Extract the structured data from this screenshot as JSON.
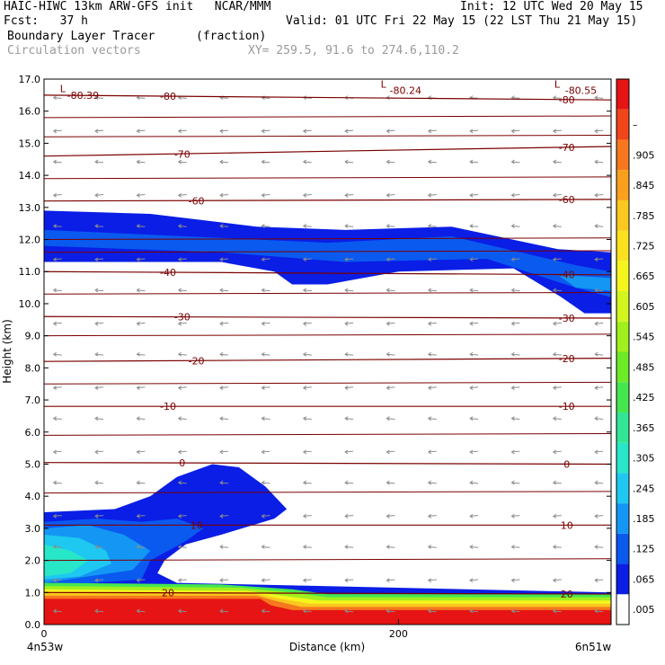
{
  "header": {
    "title": "HAIC-HIWC 13km ARW-GFS init   NCAR/MMM",
    "init": "Init: 12 UTC Wed 20 May 15",
    "fcst": "Fcst:   37 h",
    "valid": "Valid: 01 UTC Fri 22 May 15 (22 LST Thu 21 May 15)",
    "field": "Boundary Layer Tracer",
    "units": "(fraction)",
    "vectors": "Circulation vectors",
    "xy": "XY= 259.5, 91.6 to 274.6,110.2"
  },
  "chart_data": {
    "type": "heatmap",
    "title": "Boundary Layer Tracer",
    "xlabel": "Distance (km)",
    "ylabel": "Height (km)",
    "xlim": [
      0,
      320
    ],
    "ylim": [
      0,
      17
    ],
    "x_ticks": [
      "0",
      "200"
    ],
    "y_ticks": [
      "0.0",
      "1.0",
      "2.0",
      "3.0",
      "4.0",
      "5.0",
      "6.0",
      "7.0",
      "8.0",
      "9.0",
      "10.0",
      "11.0",
      "12.0",
      "13.0",
      "14.0",
      "15.0",
      "16.0",
      "17.0"
    ],
    "x_endpoint_labels": [
      "4n53w",
      "6n51w"
    ],
    "colorbar": {
      "labels": [
        ".005",
        ".065",
        ".125",
        ".185",
        ".245",
        ".305",
        ".365",
        ".425",
        ".485",
        ".545",
        ".605",
        ".665",
        ".725",
        ".785",
        ".845",
        ".905",
        "–"
      ],
      "colors": [
        "#ffffff",
        "#0a1ee6",
        "#0a5af0",
        "#1496f5",
        "#1ec8f0",
        "#28e6c8",
        "#32e696",
        "#46e650",
        "#6eeb28",
        "#a0f01e",
        "#d2f51e",
        "#f5f51e",
        "#fae11e",
        "#fac81e",
        "#faa01e",
        "#f5781e",
        "#f04619",
        "#e61414"
      ]
    },
    "temperature_contours": {
      "label_unit": "deg C",
      "lines": [
        {
          "label": "-80",
          "heights": [
            16.5,
            16.35
          ]
        },
        {
          "label": "-70",
          "heights": [
            14.6,
            14.9
          ]
        },
        {
          "label": "-60",
          "heights": [
            13.2,
            13.25
          ]
        },
        {
          "label": "-40",
          "heights": [
            11.0,
            10.9
          ]
        },
        {
          "label": "-30",
          "heights": [
            9.6,
            9.55
          ]
        },
        {
          "label": "-20",
          "heights": [
            8.2,
            8.3
          ]
        },
        {
          "label": "-10",
          "heights": [
            6.8,
            6.8
          ]
        },
        {
          "label": "0",
          "heights": [
            5.05,
            5.0
          ]
        },
        {
          "label": "10",
          "heights": [
            3.1,
            3.1
          ]
        },
        {
          "label": "20",
          "heights": [
            1.0,
            0.95
          ]
        }
      ],
      "extra_labels": [
        "L",
        "-80.39",
        "L",
        "-80.24",
        "L",
        "-80.55"
      ]
    },
    "tracer_regions": [
      {
        "name": "upper-layer",
        "x_range": [
          0,
          320
        ],
        "height_range": [
          9.7,
          12.9
        ],
        "max_fraction": 0.065
      },
      {
        "name": "boundary-layer-plume",
        "x_range": [
          0,
          135
        ],
        "height_range": [
          0.0,
          5.0
        ],
        "max_fraction": 0.305
      },
      {
        "name": "surface-layer",
        "x_range": [
          0,
          320
        ],
        "height_range": [
          0.0,
          1.1
        ],
        "max_fraction": 0.95
      }
    ],
    "grid": false,
    "legend": "right colorbar"
  }
}
